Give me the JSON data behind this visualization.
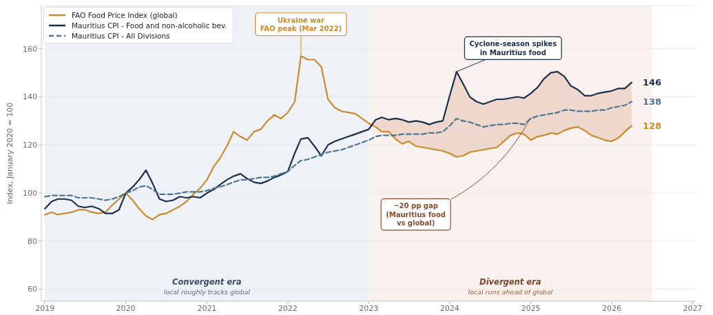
{
  "chart_data": {
    "type": "line",
    "ylabel": "Index, January 2020 = 100",
    "x": [
      "2019-01",
      "2019-02",
      "2019-03",
      "2019-04",
      "2019-05",
      "2019-06",
      "2019-07",
      "2019-08",
      "2019-09",
      "2019-10",
      "2019-11",
      "2019-12",
      "2020-01",
      "2020-02",
      "2020-03",
      "2020-04",
      "2020-05",
      "2020-06",
      "2020-07",
      "2020-08",
      "2020-09",
      "2020-10",
      "2020-11",
      "2020-12",
      "2021-01",
      "2021-02",
      "2021-03",
      "2021-04",
      "2021-05",
      "2021-06",
      "2021-07",
      "2021-08",
      "2021-09",
      "2021-10",
      "2021-11",
      "2021-12",
      "2022-01",
      "2022-02",
      "2022-03",
      "2022-04",
      "2022-05",
      "2022-06",
      "2022-07",
      "2022-08",
      "2022-09",
      "2022-10",
      "2022-11",
      "2022-12",
      "2023-01",
      "2023-02",
      "2023-03",
      "2023-04",
      "2023-05",
      "2023-06",
      "2023-07",
      "2023-08",
      "2023-09",
      "2023-10",
      "2023-11",
      "2023-12",
      "2024-01",
      "2024-02",
      "2024-03",
      "2024-04",
      "2024-05",
      "2024-06",
      "2024-07",
      "2024-08",
      "2024-09",
      "2024-10",
      "2024-11",
      "2024-12",
      "2025-01",
      "2025-02",
      "2025-03",
      "2025-04",
      "2025-05",
      "2025-06",
      "2025-07",
      "2025-08",
      "2025-09",
      "2025-10",
      "2025-11",
      "2025-12",
      "2026-01",
      "2026-02",
      "2026-03",
      "2026-04"
    ],
    "series": [
      {
        "name": "FAO Food Price Index (global)",
        "color": "#c98a2e",
        "values": [
          91,
          92,
          91,
          91.5,
          92,
          93,
          93,
          92,
          91.5,
          92,
          95,
          97.5,
          100,
          97,
          93.5,
          90.5,
          89,
          91,
          91.5,
          93,
          94.5,
          96.5,
          99.5,
          102,
          105.5,
          111,
          114.5,
          119.5,
          125.5,
          123.5,
          122,
          125.5,
          126.5,
          130,
          132.5,
          131,
          133.5,
          138,
          157,
          155.5,
          155.5,
          152.5,
          139,
          135.5,
          134,
          133.5,
          133,
          131,
          129,
          127.5,
          125.5,
          125.5,
          122.5,
          120.5,
          121.5,
          119.5,
          119,
          118.5,
          118,
          117.5,
          116.5,
          115,
          115.5,
          117,
          117.5,
          118,
          118.5,
          119,
          121.5,
          124,
          125,
          124.5,
          122,
          123.5,
          124,
          125,
          124.5,
          126,
          127,
          127.5,
          126,
          124,
          123,
          122,
          121.5,
          123,
          125.5,
          128
        ],
        "value_labels": [
          null,
          null,
          null,
          null,
          null,
          null,
          null,
          null,
          null,
          null,
          null,
          null,
          null,
          null,
          null,
          null,
          null,
          null,
          null,
          null,
          null,
          null,
          null,
          null,
          null,
          null,
          null,
          null,
          null,
          null,
          null,
          null,
          null,
          null,
          null,
          null,
          null,
          null,
          null,
          null,
          null,
          null,
          null,
          null,
          null,
          null,
          null,
          null,
          null,
          null,
          null,
          null,
          null,
          null,
          null,
          null,
          null,
          null,
          null,
          null,
          null,
          null,
          null,
          null,
          null,
          null,
          null,
          null,
          null,
          null,
          null,
          null,
          null,
          null,
          null,
          null,
          null,
          null,
          null,
          null,
          null,
          null,
          null,
          null,
          null,
          null,
          null,
          "128"
        ]
      },
      {
        "name": "Mauritius CPI - Food and non-alcoholic bev.",
        "color": "#1b2e48",
        "values": [
          93.5,
          96.5,
          97.5,
          97.5,
          97,
          94.5,
          94,
          94.5,
          93.5,
          91.5,
          91.5,
          93,
          100,
          102.5,
          105.5,
          109.5,
          104,
          97.5,
          96.5,
          97,
          98.5,
          98,
          98.5,
          98,
          100,
          101.5,
          103.5,
          105.5,
          107,
          108,
          106,
          104.5,
          104,
          105,
          106.5,
          107.5,
          109,
          116.5,
          122.5,
          123,
          119.5,
          115.5,
          120,
          121.5,
          122.5,
          123.5,
          124.5,
          125.5,
          126.5,
          130.5,
          131.5,
          130.5,
          131,
          130.5,
          129.5,
          130,
          129.5,
          128.5,
          129.5,
          130,
          140.5,
          150.5,
          145.5,
          140,
          138,
          137,
          138,
          139,
          139,
          139.5,
          140,
          139.5,
          141.5,
          144,
          147.5,
          150,
          150.5,
          148.5,
          144.5,
          143,
          140.5,
          140.5,
          141.5,
          142,
          142.5,
          143.5,
          143.5,
          146
        ],
        "lower": [
          null,
          null,
          null,
          null,
          null,
          null,
          null,
          null,
          null,
          null,
          null,
          null,
          null,
          null,
          null,
          null,
          null,
          null,
          null,
          null,
          null,
          null,
          null,
          null,
          null,
          null,
          null,
          null,
          null,
          null,
          null,
          null,
          null,
          null,
          null,
          null,
          null,
          null,
          null,
          null,
          null,
          null,
          null,
          null,
          null,
          null,
          null,
          null,
          129,
          127.5,
          125.5,
          125.5,
          122.5,
          120.5,
          121.5,
          119.5,
          119,
          118.5,
          118,
          117.5,
          116.5,
          115,
          115.5,
          117,
          117.5,
          118,
          118.5,
          119,
          121.5,
          124,
          125,
          124.5,
          122,
          123.5,
          124,
          125,
          124.5,
          126,
          127,
          127.5,
          126,
          124,
          123,
          122,
          121.5,
          123,
          125.5,
          128
        ],
        "upper": [
          null,
          null,
          null,
          null,
          null,
          null,
          null,
          null,
          null,
          null,
          null,
          null,
          null,
          null,
          null,
          null,
          null,
          null,
          null,
          null,
          null,
          null,
          null,
          null,
          null,
          null,
          null,
          null,
          null,
          null,
          null,
          null,
          null,
          null,
          null,
          null,
          null,
          null,
          null,
          null,
          null,
          null,
          null,
          null,
          null,
          null,
          null,
          null,
          126.5,
          130.5,
          131.5,
          130.5,
          131,
          130.5,
          129.5,
          130,
          129.5,
          128.5,
          129.5,
          130,
          140.5,
          150.5,
          145.5,
          140,
          138,
          137,
          138,
          139,
          139,
          139.5,
          140,
          139.5,
          141.5,
          144,
          147.5,
          150,
          150.5,
          148.5,
          144.5,
          143,
          140.5,
          140.5,
          141.5,
          142,
          142.5,
          143.5,
          143.5,
          146
        ],
        "value_labels": [
          null,
          null,
          null,
          null,
          null,
          null,
          null,
          null,
          null,
          null,
          null,
          null,
          null,
          null,
          null,
          null,
          null,
          null,
          null,
          null,
          null,
          null,
          null,
          null,
          null,
          null,
          null,
          null,
          null,
          null,
          null,
          null,
          null,
          null,
          null,
          null,
          null,
          null,
          null,
          null,
          null,
          null,
          null,
          null,
          null,
          null,
          null,
          null,
          null,
          null,
          null,
          null,
          null,
          null,
          null,
          null,
          null,
          null,
          null,
          null,
          null,
          null,
          null,
          null,
          null,
          null,
          null,
          null,
          null,
          null,
          null,
          null,
          null,
          null,
          null,
          null,
          null,
          null,
          null,
          null,
          null,
          null,
          null,
          null,
          null,
          null,
          null,
          "146"
        ]
      },
      {
        "name": "Mauritius CPI - All Divisions",
        "color": "#4f7594",
        "line_style": "dashed",
        "values": [
          98.5,
          99,
          99,
          99,
          99,
          98,
          98,
          98,
          97.5,
          97,
          97.5,
          98.5,
          100,
          101,
          102.5,
          103,
          101.5,
          99.5,
          99.5,
          99.5,
          100,
          100.5,
          100.5,
          100.5,
          101,
          102,
          102.5,
          103.5,
          104.5,
          105.5,
          105.5,
          106,
          106.5,
          106.5,
          107,
          108,
          109,
          111.5,
          113.5,
          114,
          115,
          116,
          117,
          117.5,
          118,
          119,
          120,
          121,
          122,
          123.5,
          124,
          124,
          124,
          124.5,
          124.5,
          124.5,
          124.5,
          125,
          125,
          125.5,
          128,
          131,
          130,
          129.5,
          128.5,
          127.5,
          128,
          128.5,
          128.5,
          129,
          129,
          128.5,
          131,
          132,
          132.5,
          133,
          133.5,
          134.5,
          134.5,
          134,
          134,
          134,
          134.5,
          134.5,
          135.5,
          136,
          136.5,
          138
        ],
        "value_labels": [
          null,
          null,
          null,
          null,
          null,
          null,
          null,
          null,
          null,
          null,
          null,
          null,
          null,
          null,
          null,
          null,
          null,
          null,
          null,
          null,
          null,
          null,
          null,
          null,
          null,
          null,
          null,
          null,
          null,
          null,
          null,
          null,
          null,
          null,
          null,
          null,
          null,
          null,
          null,
          null,
          null,
          null,
          null,
          null,
          null,
          null,
          null,
          null,
          null,
          null,
          null,
          null,
          null,
          null,
          null,
          null,
          null,
          null,
          null,
          null,
          null,
          null,
          null,
          null,
          null,
          null,
          null,
          null,
          null,
          null,
          null,
          null,
          null,
          null,
          null,
          null,
          null,
          null,
          null,
          null,
          null,
          null,
          null,
          null,
          null,
          null,
          null,
          "138"
        ]
      }
    ],
    "xlim": [
      "2018-12-16",
      "2027-01-15"
    ],
    "xticks": [
      "2019",
      "2020",
      "2021",
      "2022",
      "2023",
      "2024",
      "2025",
      "2026",
      "2027"
    ],
    "ylim": [
      55,
      178
    ],
    "yticks": [
      60,
      80,
      100,
      120,
      140,
      160
    ],
    "grid": "y",
    "legend": "top left",
    "bands": [
      {
        "axis": "x",
        "from": "2019-01",
        "to": "2023-01",
        "label": "Convergent era\nlocal roughly tracks global",
        "color": "#eef1f6"
      },
      {
        "axis": "x",
        "from": "2023-01",
        "to": "2026-07",
        "label": "Divergent era\nlocal runs ahead of global",
        "color": "#f9f1ed"
      }
    ],
    "annotations": [
      {
        "text": "Ukraine war\nFAO peak (Mar 2022)",
        "x": "2022-03",
        "y": 157
      },
      {
        "text": "Cyclone-season spikes\nin Mauritius food",
        "x": "2024-02",
        "y": 150.5
      },
      {
        "text": "~20 pp gap\n(Mauritius food\nvs global)",
        "x": "2025-01",
        "y": 131.5
      }
    ]
  }
}
